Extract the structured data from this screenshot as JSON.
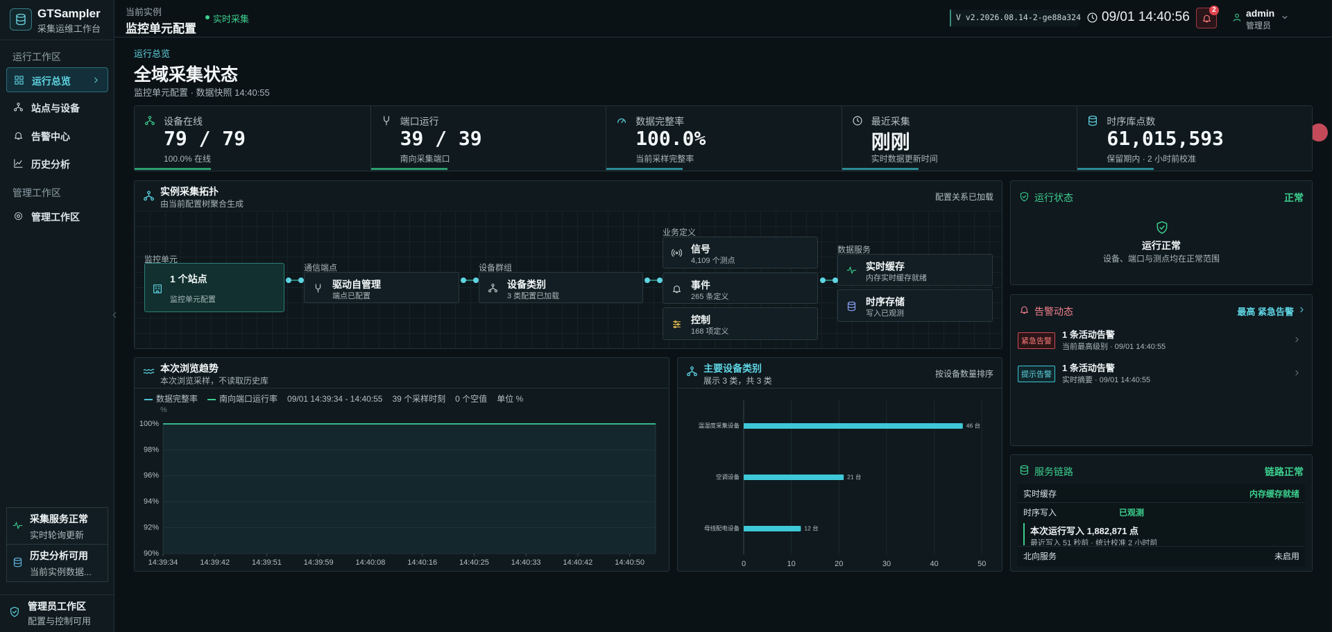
{
  "sidebar": {
    "brand": "GTSampler",
    "brand_sub": "采集运维工作台",
    "sections": [
      {
        "title": "运行工作区",
        "items": [
          "运行总览",
          "站点与设备",
          "告警中心",
          "历史分析"
        ]
      },
      {
        "title": "管理工作区",
        "items": [
          "管理工作区"
        ]
      }
    ],
    "status": [
      {
        "title": "采集服务正常",
        "sub": "实时轮询更新"
      },
      {
        "title": "历史分析可用",
        "sub": "当前实例数据..."
      }
    ],
    "footer": {
      "title": "管理员工作区",
      "sub": "配置与控制可用"
    }
  },
  "header": {
    "label": "当前实例",
    "title": "监控单元配置",
    "live": "实时采集",
    "version": "V v2.2026.08.14-2-ge88a324",
    "time": "09/01 14:40:56",
    "badge": "2",
    "user": "admin",
    "role": "管理员"
  },
  "page": {
    "crumb": "运行总览",
    "title": "全域采集状态",
    "subtitle": "监控单元配置 · 数据快照 14:40:55"
  },
  "kpis": [
    {
      "label": "设备在线",
      "value": "79 / 79",
      "sub": "100.0% 在线"
    },
    {
      "label": "端口运行",
      "value": "39 / 39",
      "sub": "南向采集端口"
    },
    {
      "label": "数据完整率",
      "value": "100.0%",
      "sub": "当前采样完整率"
    },
    {
      "label": "最近采集",
      "value": "刚刚",
      "sub": "实时数据更新时间"
    },
    {
      "label": "时序库点数",
      "value": "61,015,593",
      "sub": "保留期内 · 2 小时前校准"
    }
  ],
  "topology": {
    "title": "实例采集拓扑",
    "sub": "由当前配置树聚合生成",
    "status": "配置关系已加载",
    "columns": [
      {
        "label": "监控单元",
        "nodes": [
          {
            "title": "1 个站点",
            "sub": "监控单元配置"
          }
        ]
      },
      {
        "label": "通信端点",
        "nodes": [
          {
            "title": "驱动自管理",
            "sub": "端点已配置"
          }
        ]
      },
      {
        "label": "设备群组",
        "nodes": [
          {
            "title": "设备类别",
            "sub": "3 类配置已加载"
          }
        ]
      },
      {
        "label": "业务定义",
        "nodes": [
          {
            "title": "信号",
            "sub": "4,109 个测点"
          },
          {
            "title": "事件",
            "sub": "265 条定义"
          },
          {
            "title": "控制",
            "sub": "168 项定义"
          }
        ]
      },
      {
        "label": "数据服务",
        "nodes": [
          {
            "title": "实时缓存",
            "sub": "内存实时缓存就绪"
          },
          {
            "title": "时序存储",
            "sub": "写入已观测"
          }
        ]
      }
    ]
  },
  "status_panel": {
    "title": "运行状态",
    "state": "正常",
    "headline": "运行正常",
    "detail": "设备、端口与测点均在正常范围"
  },
  "alerts": {
    "title": "告警动态",
    "summary": "最高 紧急告警",
    "items": [
      {
        "tag": "紧急告警",
        "title": "1 条活动告警",
        "sub": "当前最高级别 · 09/01 14:40:55"
      },
      {
        "tag": "提示告警",
        "title": "1 条活动告警",
        "sub": "实时摘要 · 09/01 14:40:55"
      }
    ]
  },
  "service": {
    "title": "服务链路",
    "state": "链路正常",
    "rows": [
      {
        "name": "实时缓存",
        "value": "内存缓存就绪"
      },
      {
        "name": "时序写入",
        "value": "已观测"
      }
    ],
    "write": {
      "title": "本次运行写入 1,882,871 点",
      "sub": "最近写入 51 秒前 · 统计校准 2 小时前"
    },
    "north": {
      "name": "北向服务",
      "value": "未启用"
    }
  },
  "chart_data": [
    {
      "type": "line",
      "title": "本次浏览趋势",
      "subtitle": "本次浏览采样，不读取历史库",
      "meta": [
        "09/01 14:39:34 - 14:40:55",
        "39 个采样时刻",
        "0 个空值",
        "单位 %"
      ],
      "y_unit": "%",
      "categories": [
        "14:39:34",
        null,
        null,
        null,
        "14:39:42",
        null,
        null,
        null,
        "14:39:51",
        null,
        null,
        null,
        "14:39:59",
        null,
        null,
        null,
        "14:40:08",
        null,
        null,
        null,
        "14:40:16",
        null,
        null,
        null,
        "14:40:25",
        null,
        null,
        null,
        "14:40:33",
        null,
        null,
        null,
        "14:40:42",
        null,
        null,
        null,
        "14:40:50",
        null,
        null
      ],
      "series": [
        {
          "name": "数据完整率",
          "color": "#4fc3d9",
          "values": [
            100,
            100,
            100,
            100,
            100,
            100,
            100,
            100,
            100,
            100,
            100,
            100,
            100,
            100,
            100,
            100,
            100,
            100,
            100,
            100,
            100,
            100,
            100,
            100,
            100,
            100,
            100,
            100,
            100,
            100,
            100,
            100,
            100,
            100,
            100,
            100,
            100,
            100,
            100
          ]
        },
        {
          "name": "南向端口运行率",
          "color": "#3ccf8e",
          "values": [
            100,
            100,
            100,
            100,
            100,
            100,
            100,
            100,
            100,
            100,
            100,
            100,
            100,
            100,
            100,
            100,
            100,
            100,
            100,
            100,
            100,
            100,
            100,
            100,
            100,
            100,
            100,
            100,
            100,
            100,
            100,
            100,
            100,
            100,
            100,
            100,
            100,
            100,
            100
          ]
        }
      ],
      "ylim": [
        90,
        100
      ],
      "yticks": [
        {
          "value": 90,
          "label": "90%"
        },
        {
          "value": 92,
          "label": "92%"
        },
        {
          "value": 94,
          "label": "94%"
        },
        {
          "value": 96,
          "label": "96%"
        },
        {
          "value": 98,
          "label": "98%"
        },
        {
          "value": 100,
          "label": "100%"
        }
      ],
      "grid": true
    },
    {
      "type": "hbar",
      "title": "主要设备类别",
      "subtitle": "展示 3 类，共 3 类",
      "sort_note": "按设备数量排序",
      "categories": [
        "温湿度采集设备",
        "空调设备",
        "母线配电设备"
      ],
      "values": [
        46,
        21,
        12
      ],
      "value_labels": [
        "46 台",
        "21 台",
        "12 台"
      ],
      "color": "#3ec8d8",
      "xlim": [
        0,
        52
      ],
      "xticks": [
        0,
        10,
        20,
        30,
        40,
        50
      ],
      "grid": true
    }
  ]
}
